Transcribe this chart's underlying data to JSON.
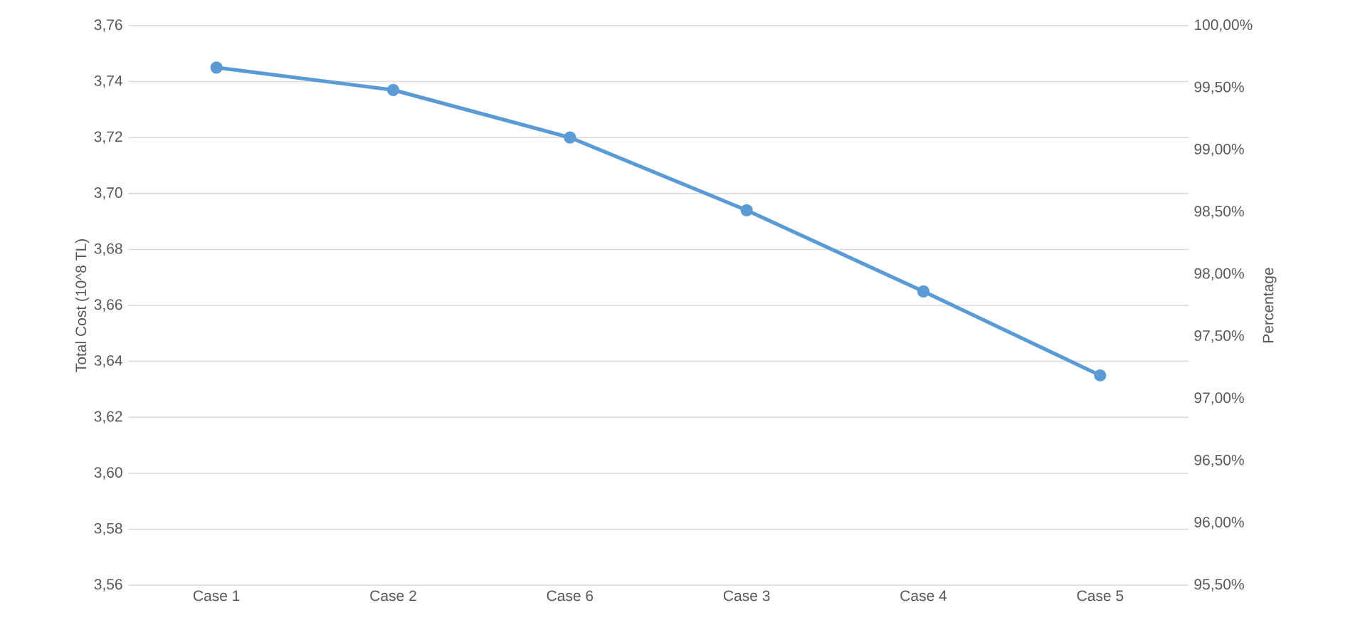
{
  "chart_data": {
    "type": "line",
    "categories": [
      "Case 1",
      "Case 2",
      "Case 6",
      "Case 3",
      "Case 4",
      "Case 5"
    ],
    "series": [
      {
        "color": "#5b9bd5",
        "values": [
          3.745,
          3.737,
          3.72,
          3.694,
          3.665,
          3.635
        ]
      }
    ],
    "ylabel": "Total Cost (10^8 TL)",
    "y2label": "Percentage",
    "ylim": [
      3.56,
      3.76
    ],
    "yticks": [
      {
        "value": 3.56,
        "label": "3,56"
      },
      {
        "value": 3.58,
        "label": "3,58"
      },
      {
        "value": 3.6,
        "label": "3,60"
      },
      {
        "value": 3.62,
        "label": "3,62"
      },
      {
        "value": 3.64,
        "label": "3,64"
      },
      {
        "value": 3.66,
        "label": "3,66"
      },
      {
        "value": 3.68,
        "label": "3,68"
      },
      {
        "value": 3.7,
        "label": "3,70"
      },
      {
        "value": 3.72,
        "label": "3,72"
      },
      {
        "value": 3.74,
        "label": "3,74"
      },
      {
        "value": 3.76,
        "label": "3,76"
      }
    ],
    "y2lim": [
      95.5,
      100
    ],
    "y2ticks": [
      {
        "value": 95.5,
        "label": "95,50%"
      },
      {
        "value": 96,
        "label": "96,00%"
      },
      {
        "value": 96.5,
        "label": "96,50%"
      },
      {
        "value": 97,
        "label": "97,00%"
      },
      {
        "value": 97.5,
        "label": "97,50%"
      },
      {
        "value": 98,
        "label": "98,00%"
      },
      {
        "value": 98.5,
        "label": "98,50%"
      },
      {
        "value": 99,
        "label": "99,00%"
      },
      {
        "value": 99.5,
        "label": "99,50%"
      },
      {
        "value": 100,
        "label": "100,00%"
      }
    ],
    "grid": "y",
    "marker": "circle",
    "line_style": "solid"
  }
}
